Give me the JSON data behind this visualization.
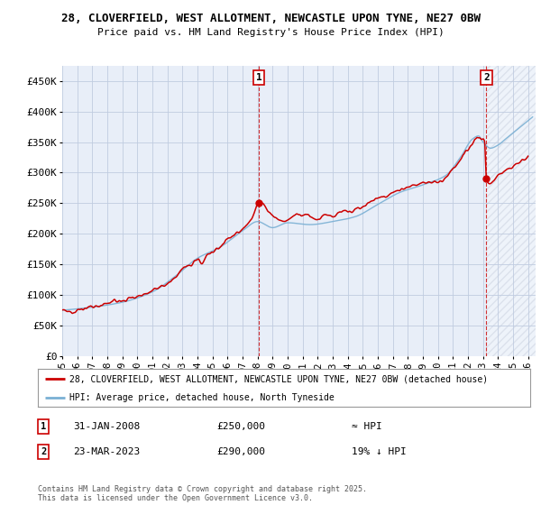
{
  "title_line1": "28, CLOVERFIELD, WEST ALLOTMENT, NEWCASTLE UPON TYNE, NE27 0BW",
  "title_line2": "Price paid vs. HM Land Registry's House Price Index (HPI)",
  "background_color": "#ffffff",
  "plot_bg_color": "#e8eef8",
  "grid_color": "#c0cce0",
  "line_color": "#cc0000",
  "hpi_color": "#7ab0d4",
  "sale1_date_num": 2008.08,
  "sale1_price": 250000,
  "sale2_date_num": 2023.23,
  "sale2_price": 290000,
  "xmin": 1995.0,
  "xmax": 2026.5,
  "ymin": 0,
  "ymax": 475000,
  "yticks": [
    0,
    50000,
    100000,
    150000,
    200000,
    250000,
    300000,
    350000,
    400000,
    450000
  ],
  "ytick_labels": [
    "£0",
    "£50K",
    "£100K",
    "£150K",
    "£200K",
    "£250K",
    "£300K",
    "£350K",
    "£400K",
    "£450K"
  ],
  "legend_label1": "28, CLOVERFIELD, WEST ALLOTMENT, NEWCASTLE UPON TYNE, NE27 0BW (detached house)",
  "legend_label2": "HPI: Average price, detached house, North Tyneside",
  "annotation1_date": "31-JAN-2008",
  "annotation1_price": "£250,000",
  "annotation1_hpi": "≈ HPI",
  "annotation2_date": "23-MAR-2023",
  "annotation2_price": "£290,000",
  "annotation2_hpi": "19% ↓ HPI",
  "footer": "Contains HM Land Registry data © Crown copyright and database right 2025.\nThis data is licensed under the Open Government Licence v3.0."
}
